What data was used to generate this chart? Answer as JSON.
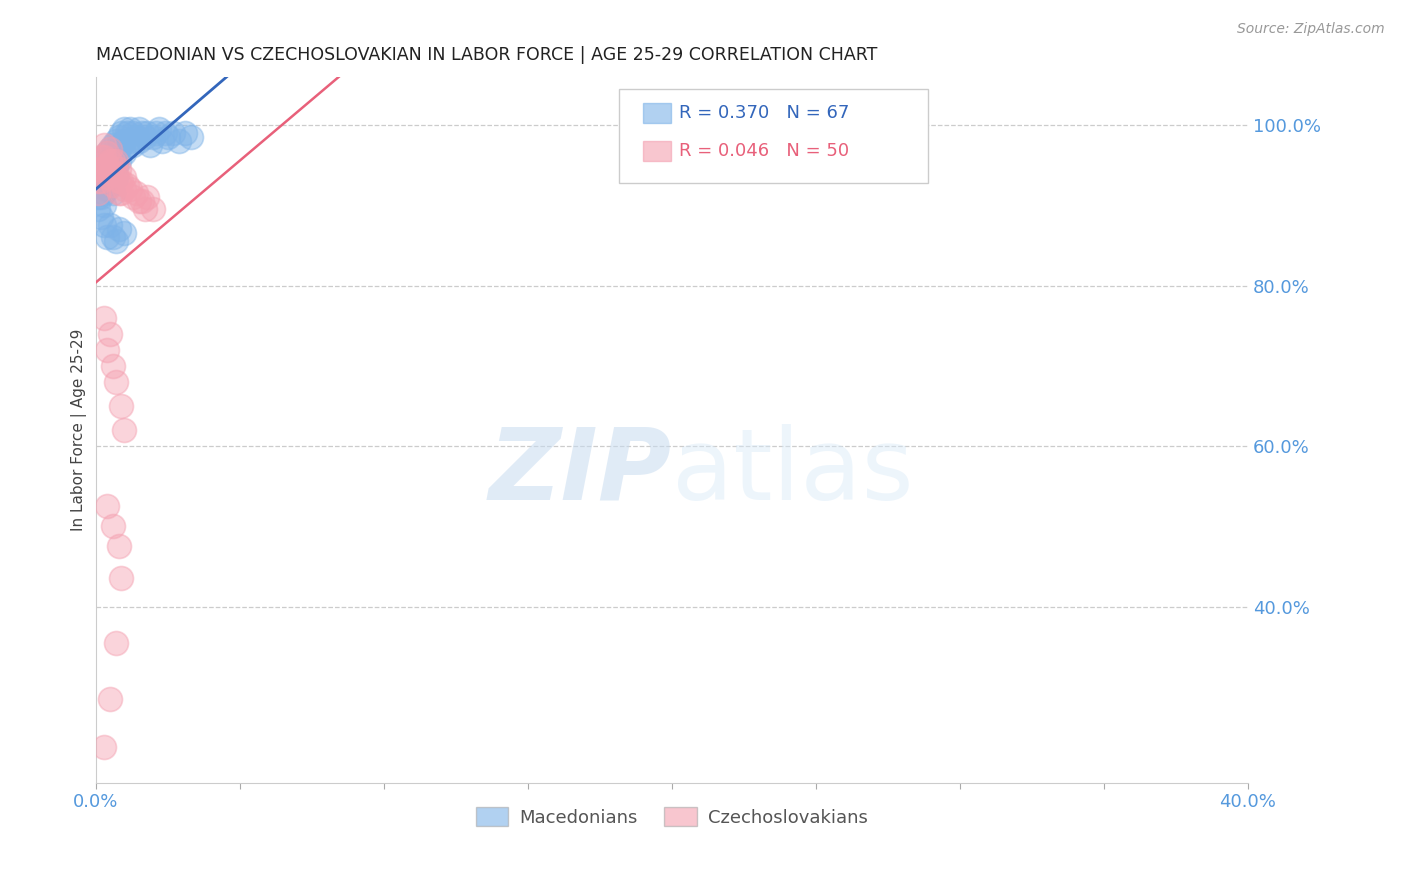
{
  "title": "MACEDONIAN VS CZECHOSLOVAKIAN IN LABOR FORCE | AGE 25-29 CORRELATION CHART",
  "source": "Source: ZipAtlas.com",
  "ylabel": "In Labor Force | Age 25-29",
  "xlim": [
    0.0,
    0.4
  ],
  "ylim": [
    0.18,
    1.06
  ],
  "xticks": [
    0.0,
    0.05,
    0.1,
    0.15,
    0.2,
    0.25,
    0.3,
    0.35,
    0.4
  ],
  "xticklabels": [
    "0.0%",
    "",
    "",
    "",
    "",
    "",
    "",
    "",
    "40.0%"
  ],
  "yticks_right": [
    0.4,
    0.6,
    0.8,
    1.0
  ],
  "yticklabels_right": [
    "40.0%",
    "60.0%",
    "80.0%",
    "100.0%"
  ],
  "blue_R": 0.37,
  "blue_N": 67,
  "pink_R": 0.046,
  "pink_N": 50,
  "blue_color": "#7EB3E8",
  "pink_color": "#F4A0B0",
  "blue_line_color": "#3366BB",
  "pink_line_color": "#E8607A",
  "axis_color": "#5599DD",
  "tick_color": "#5599DD",
  "watermark_color": "#D8EAFA",
  "macedonians_x": [
    0.001,
    0.001,
    0.001,
    0.002,
    0.002,
    0.002,
    0.002,
    0.003,
    0.003,
    0.003,
    0.003,
    0.003,
    0.004,
    0.004,
    0.004,
    0.004,
    0.005,
    0.005,
    0.005,
    0.005,
    0.006,
    0.006,
    0.006,
    0.006,
    0.006,
    0.007,
    0.007,
    0.007,
    0.007,
    0.008,
    0.008,
    0.008,
    0.009,
    0.009,
    0.01,
    0.01,
    0.01,
    0.011,
    0.011,
    0.012,
    0.012,
    0.013,
    0.013,
    0.014,
    0.015,
    0.015,
    0.016,
    0.017,
    0.018,
    0.019,
    0.02,
    0.021,
    0.022,
    0.023,
    0.024,
    0.025,
    0.027,
    0.029,
    0.031,
    0.033,
    0.003,
    0.004,
    0.005,
    0.006,
    0.007,
    0.008,
    0.01
  ],
  "macedonians_y": [
    0.93,
    0.91,
    0.895,
    0.94,
    0.925,
    0.91,
    0.885,
    0.96,
    0.945,
    0.93,
    0.915,
    0.9,
    0.965,
    0.95,
    0.935,
    0.92,
    0.97,
    0.955,
    0.94,
    0.925,
    0.975,
    0.96,
    0.945,
    0.93,
    0.915,
    0.98,
    0.965,
    0.95,
    0.935,
    0.985,
    0.97,
    0.955,
    0.99,
    0.975,
    0.995,
    0.98,
    0.965,
    0.99,
    0.975,
    0.995,
    0.98,
    0.99,
    0.975,
    0.985,
    0.995,
    0.98,
    0.99,
    0.985,
    0.99,
    0.975,
    0.985,
    0.99,
    0.995,
    0.98,
    0.99,
    0.985,
    0.99,
    0.98,
    0.99,
    0.985,
    0.875,
    0.86,
    0.875,
    0.86,
    0.855,
    0.87,
    0.865
  ],
  "czechoslovakians_x": [
    0.001,
    0.001,
    0.001,
    0.002,
    0.002,
    0.002,
    0.003,
    0.003,
    0.003,
    0.004,
    0.004,
    0.004,
    0.005,
    0.005,
    0.005,
    0.006,
    0.006,
    0.006,
    0.007,
    0.007,
    0.008,
    0.008,
    0.008,
    0.009,
    0.009,
    0.01,
    0.01,
    0.011,
    0.012,
    0.013,
    0.014,
    0.015,
    0.016,
    0.017,
    0.018,
    0.02,
    0.003,
    0.004,
    0.005,
    0.006,
    0.007,
    0.009,
    0.01,
    0.004,
    0.006,
    0.008,
    0.009,
    0.007,
    0.005,
    0.003
  ],
  "czechoslovakians_y": [
    0.945,
    0.93,
    0.915,
    0.96,
    0.945,
    0.93,
    0.975,
    0.96,
    0.945,
    0.965,
    0.95,
    0.935,
    0.97,
    0.955,
    0.94,
    0.955,
    0.94,
    0.925,
    0.955,
    0.94,
    0.945,
    0.93,
    0.915,
    0.93,
    0.915,
    0.935,
    0.92,
    0.925,
    0.92,
    0.91,
    0.915,
    0.905,
    0.905,
    0.895,
    0.91,
    0.895,
    0.76,
    0.72,
    0.74,
    0.7,
    0.68,
    0.65,
    0.62,
    0.525,
    0.5,
    0.475,
    0.435,
    0.355,
    0.285,
    0.225
  ]
}
